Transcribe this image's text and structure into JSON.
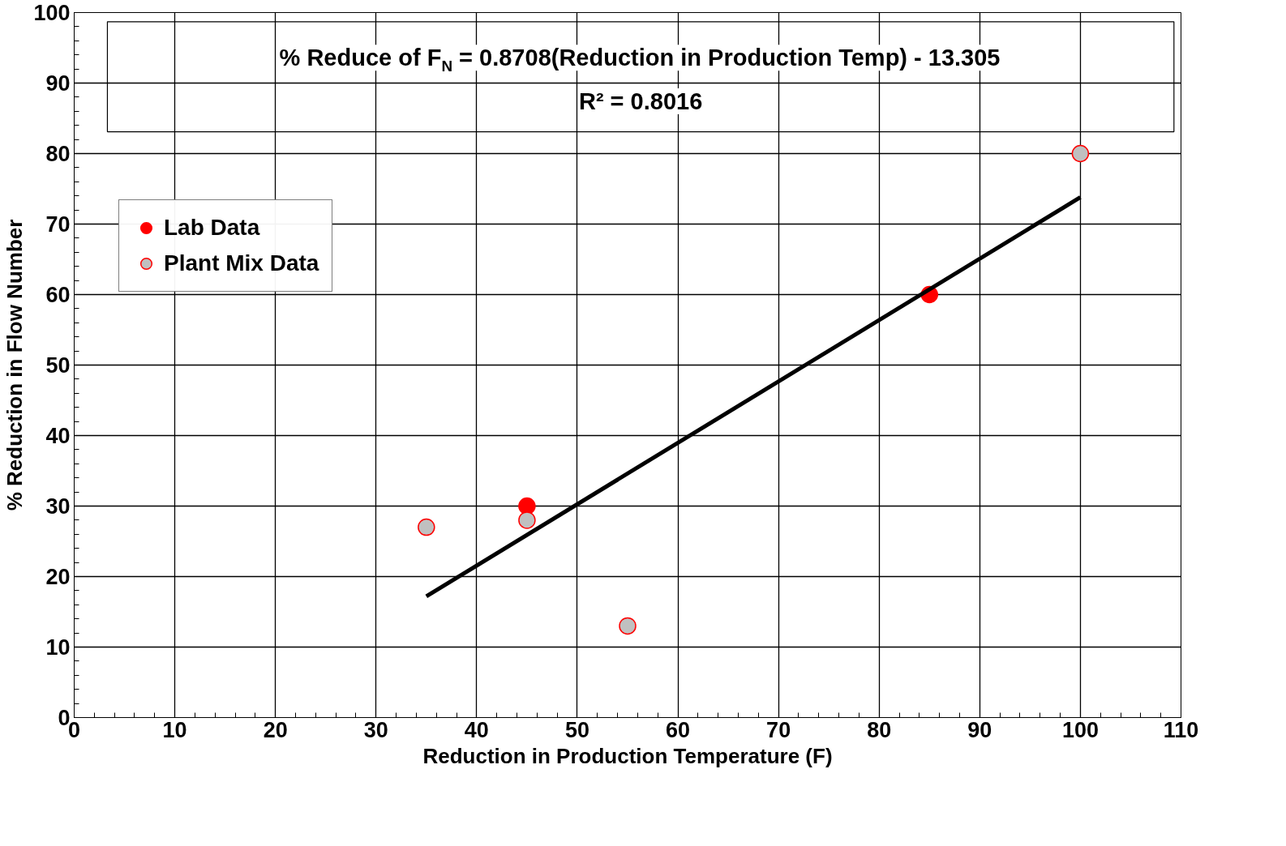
{
  "chart_data": {
    "type": "scatter",
    "xlabel": "Reduction in Production Temperature (F)",
    "ylabel": "% Reduction in Flow Number",
    "xlim": [
      0,
      110
    ],
    "xticks": [
      0,
      10,
      20,
      30,
      40,
      50,
      60,
      70,
      80,
      90,
      100,
      110
    ],
    "ylim": [
      0,
      100
    ],
    "yticks": [
      0,
      10,
      20,
      30,
      40,
      50,
      60,
      70,
      80,
      90,
      100
    ],
    "grid": true,
    "legend": "top left",
    "marker": "circle",
    "annotations": [
      "% Reduce of F$_{N}$ = 0.8708(Reduction in Production Temp) - 13.305",
      "R² = 0.8016"
    ],
    "series": [
      {
        "name": "Lab Data",
        "color": "#ff0000",
        "x": [
          45,
          85
        ],
        "values": [
          30,
          60
        ]
      },
      {
        "name": "Plant Mix Data",
        "color": "#c0c0c0",
        "x": [
          35,
          45,
          55,
          100
        ],
        "values": [
          27,
          28,
          13,
          80
        ]
      },
      {
        "type": "line",
        "color": "#000000",
        "x": [
          35,
          100
        ],
        "values": [
          17.2,
          73.8
        ],
        "line_style": "solid",
        "marker": "none"
      }
    ]
  }
}
